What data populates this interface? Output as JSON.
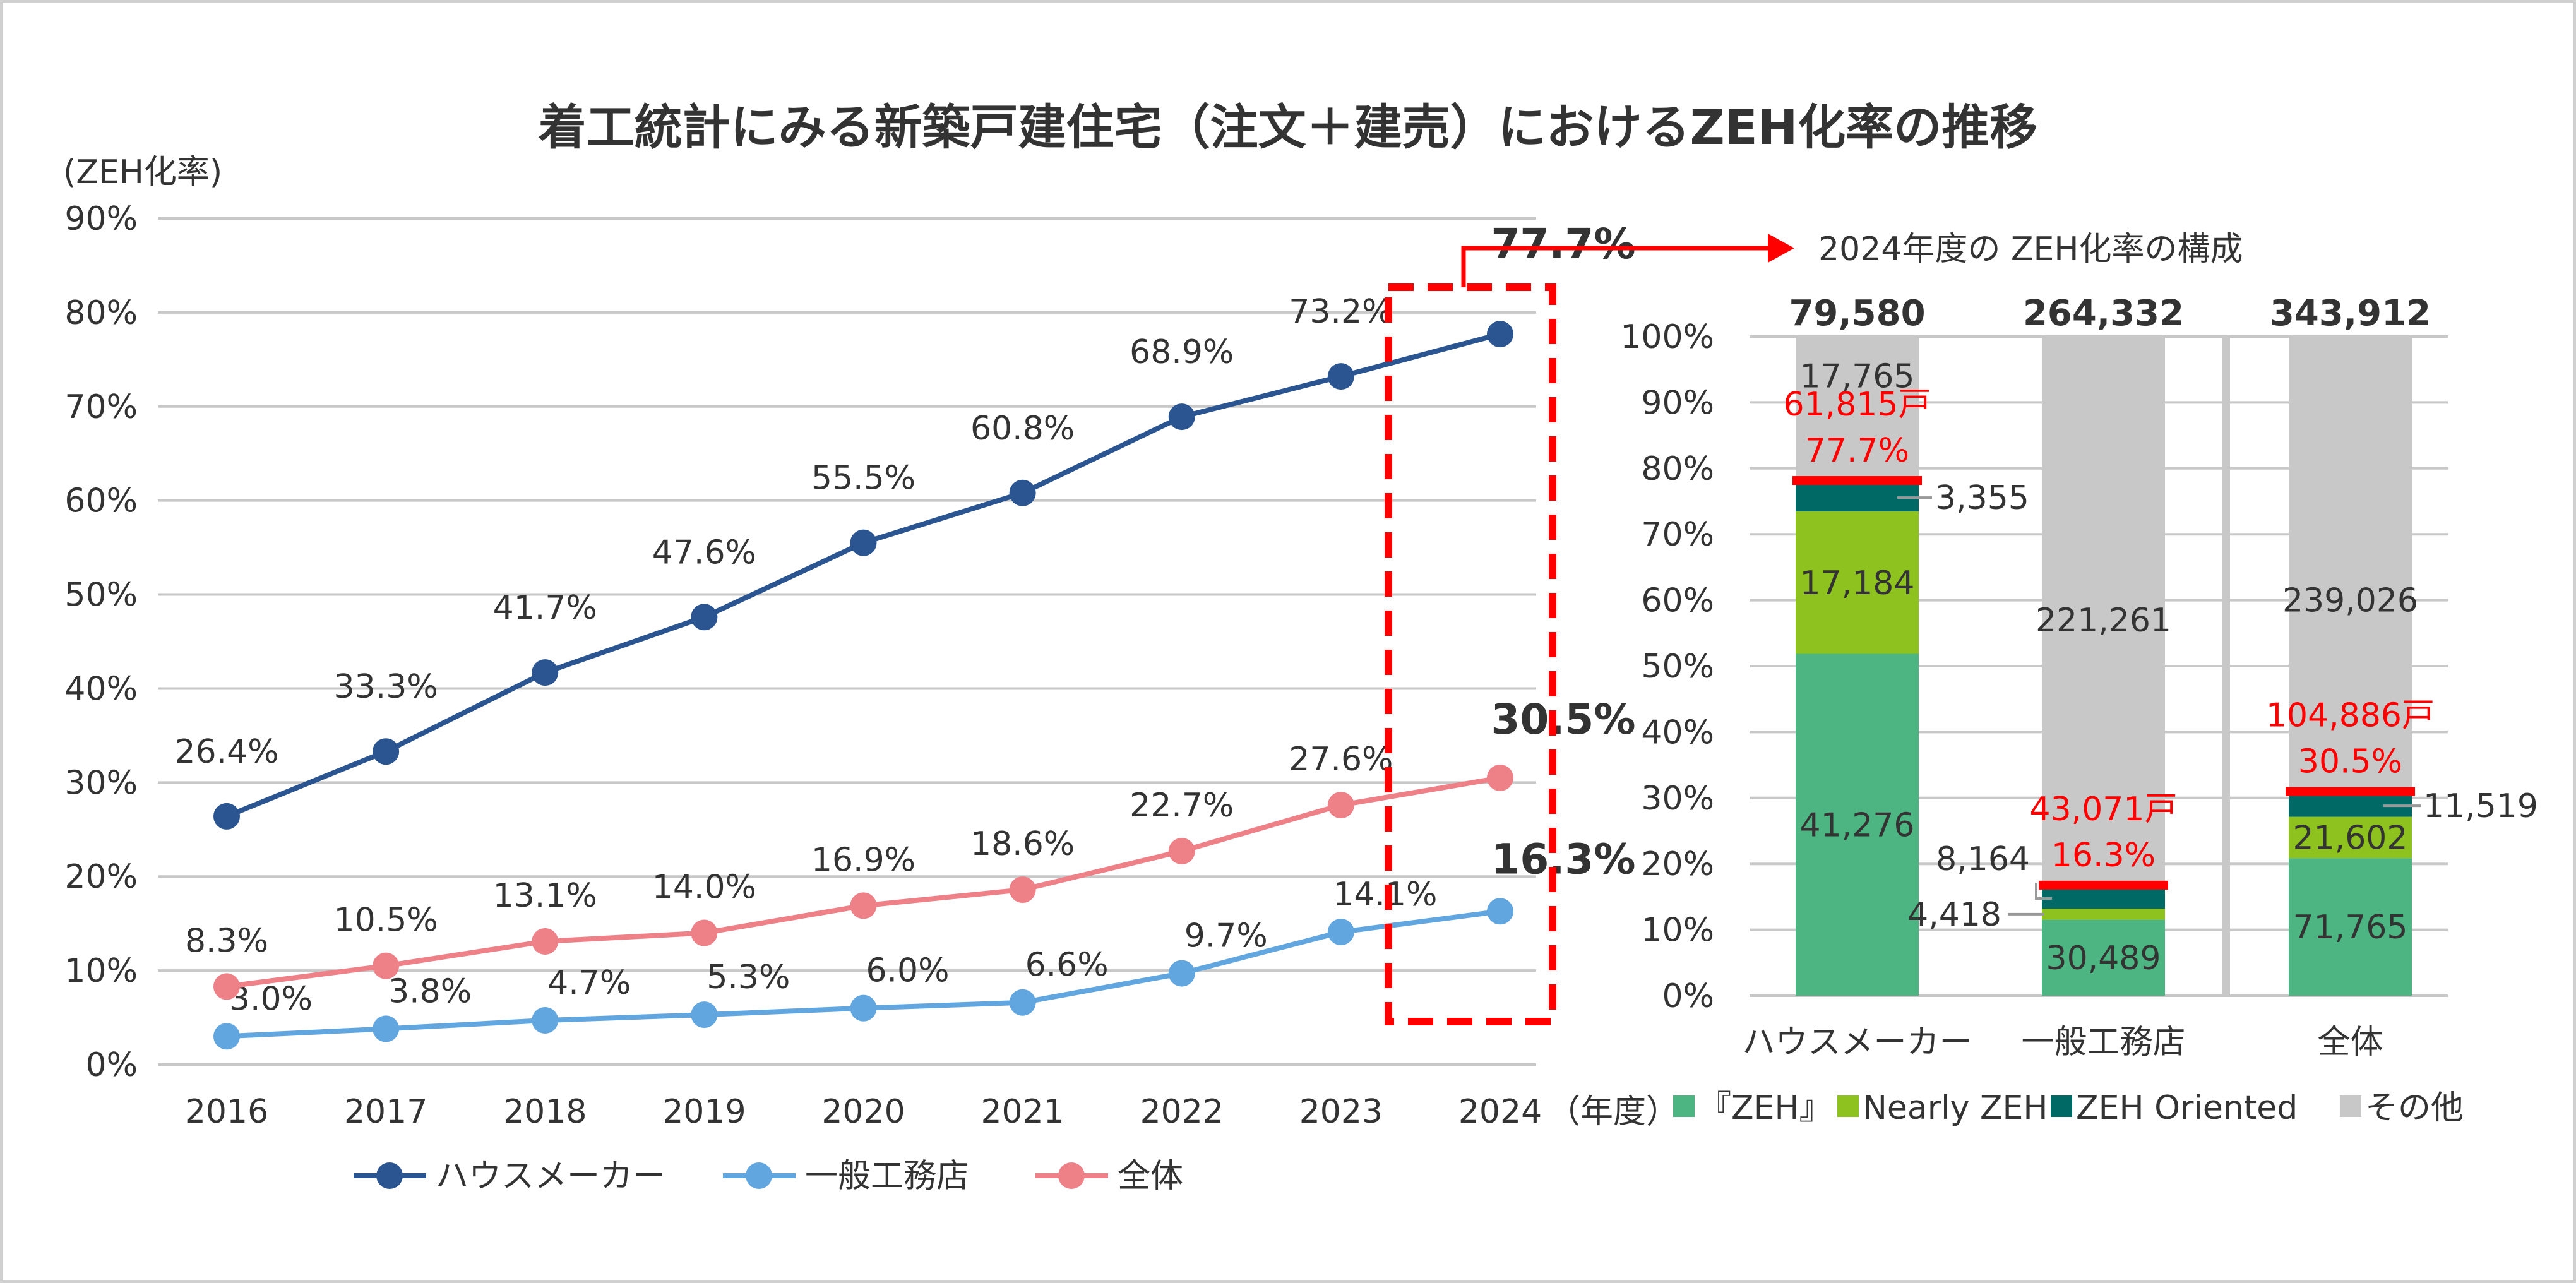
{
  "title": "着工統計にみる新築戸建住宅（注文＋建売）におけるZEH化率の推移",
  "colors": {
    "house_maker": "#2B5591",
    "general": "#62A6E0",
    "total": "#EE8088",
    "zeh": "#4CB582",
    "nearly_zeh": "#8DC21F",
    "zeh_oriented": "#006865",
    "other": "#C8C8C8",
    "highlight": "#FF0000",
    "grid": "#C8C8C8"
  },
  "chart_data": [
    {
      "type": "line",
      "ylabel": "(ZEH化率)",
      "xlabel_suffix": "（年度）",
      "ylim": [
        0,
        90
      ],
      "yticks": [
        "0%",
        "10%",
        "20%",
        "30%",
        "40%",
        "50%",
        "60%",
        "70%",
        "80%",
        "90%"
      ],
      "grid": true,
      "legend": "bottom",
      "categories": [
        "2016",
        "2017",
        "2018",
        "2019",
        "2020",
        "2021",
        "2022",
        "2023",
        "2024"
      ],
      "series": [
        {
          "name": "ハウスメーカー",
          "values": [
            26.4,
            33.3,
            41.7,
            47.6,
            55.5,
            60.8,
            68.9,
            73.2,
            77.7
          ],
          "labels": [
            "26.4%",
            "33.3%",
            "41.7%",
            "47.6%",
            "55.5%",
            "60.8%",
            "68.9%",
            "73.2%",
            "77.7%"
          ]
        },
        {
          "name": "一般工務店",
          "values": [
            3.0,
            3.8,
            4.7,
            5.3,
            6.0,
            6.6,
            9.7,
            14.1,
            16.3
          ],
          "labels": [
            "3.0%",
            "3.8%",
            "4.7%",
            "5.3%",
            "6.0%",
            "6.6%",
            "9.7%",
            "14.1%",
            "16.3%"
          ]
        },
        {
          "name": "全体",
          "values": [
            8.3,
            10.5,
            13.1,
            14.0,
            16.9,
            18.6,
            22.7,
            27.6,
            30.5
          ],
          "labels": [
            "8.3%",
            "10.5%",
            "13.1%",
            "14.0%",
            "16.9%",
            "18.6%",
            "22.7%",
            "27.6%",
            "30.5%"
          ]
        }
      ],
      "annotation": "2024年度の ZEH化率の構成"
    },
    {
      "type": "bar",
      "stacked": "percent",
      "ylim": [
        0,
        100
      ],
      "yticks": [
        "0%",
        "10%",
        "20%",
        "30%",
        "40%",
        "50%",
        "60%",
        "70%",
        "80%",
        "90%",
        "100%"
      ],
      "grid": true,
      "legend": "bottom",
      "categories": [
        "ハウスメーカー",
        "一般工務店",
        "全体"
      ],
      "totals": [
        "79,580",
        "264,332",
        "343,912"
      ],
      "series": [
        {
          "name": "『ZEH』",
          "values": [
            41276,
            30489,
            71765
          ],
          "labels": [
            "41,276",
            "30,489",
            "71,765"
          ]
        },
        {
          "name": "Nearly ZEH",
          "values": [
            17184,
            4418,
            21602
          ],
          "labels": [
            "17,184",
            "4,418",
            "21,602"
          ]
        },
        {
          "name": "ZEH Oriented",
          "values": [
            3355,
            8164,
            11519
          ],
          "labels": [
            "3,355",
            "8,164",
            "11,519"
          ]
        },
        {
          "name": "その他",
          "values": [
            17765,
            221261,
            239026
          ],
          "labels": [
            "17,765",
            "221,261",
            "239,026"
          ]
        }
      ],
      "zeh_total": [
        "61,815戸",
        "43,071戸",
        "104,886戸"
      ],
      "zeh_rate": [
        "77.7%",
        "16.3%",
        "30.5%"
      ]
    }
  ]
}
